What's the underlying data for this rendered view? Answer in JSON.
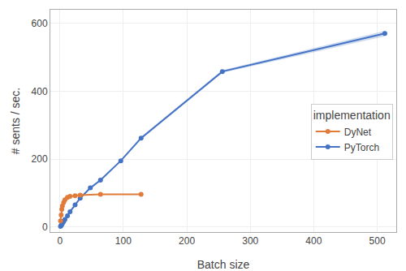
{
  "chart_data": {
    "type": "line",
    "xlabel": "Batch size",
    "ylabel": "# sents / sec.",
    "xlim": [
      -15,
      530
    ],
    "ylim": [
      -15,
      640
    ],
    "xticks": [
      0,
      100,
      200,
      300,
      400,
      500
    ],
    "yticks": [
      0,
      200,
      400,
      600
    ],
    "grid": true,
    "legend": "right",
    "legend_title": "implementation",
    "series": [
      {
        "name": "PyTorch",
        "color": "#4472c4",
        "marker": "circle",
        "x": [
          1,
          2,
          3,
          4,
          6,
          8,
          12,
          16,
          24,
          32,
          48,
          64,
          96,
          128,
          256,
          512
        ],
        "values": [
          2,
          4,
          7,
          10,
          16,
          22,
          33,
          45,
          65,
          85,
          115,
          138,
          195,
          262,
          458,
          570
        ],
        "lower": [
          1.5,
          3.5,
          6,
          9,
          15,
          21,
          31,
          43,
          63,
          83,
          113,
          136,
          193,
          258,
          454,
          562
        ],
        "upper": [
          2.5,
          4.5,
          8,
          11,
          17,
          23,
          35,
          47,
          67,
          87,
          117,
          140,
          197,
          266,
          462,
          578
        ]
      },
      {
        "name": "DyNet",
        "color": "#e07b39",
        "marker": "circle",
        "x": [
          1,
          2,
          3,
          4,
          6,
          8,
          12,
          16,
          24,
          32,
          64,
          128
        ],
        "values": [
          18,
          35,
          52,
          62,
          72,
          80,
          87,
          90,
          92,
          94,
          96,
          96
        ]
      }
    ]
  }
}
